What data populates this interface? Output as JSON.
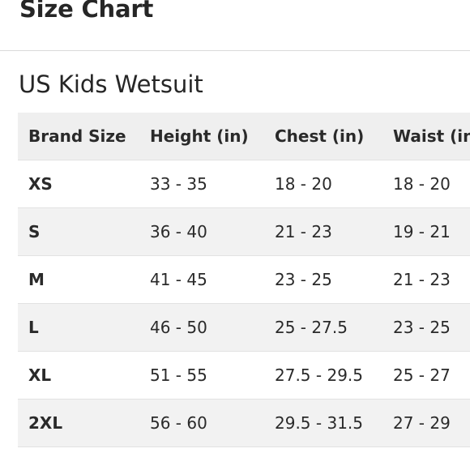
{
  "modal": {
    "title": "Size Chart"
  },
  "section": {
    "title": "US Kids Wetsuit"
  },
  "table": {
    "headers": [
      "Brand Size",
      "Height (in)",
      "Chest (in)",
      "Waist (in)"
    ],
    "rows": [
      [
        "XS",
        "33 - 35",
        "18 - 20",
        "18 - 20"
      ],
      [
        "S",
        "36 - 40",
        "21 - 23",
        "19 - 21"
      ],
      [
        "M",
        "41 - 45",
        "23 - 25",
        "21 - 23"
      ],
      [
        "L",
        "46 - 50",
        "25 - 27.5",
        "23 - 25"
      ],
      [
        "XL",
        "51 - 55",
        "27.5 - 29.5",
        "25 - 27"
      ],
      [
        "2XL",
        "56 - 60",
        "29.5 - 31.5",
        "27 - 29"
      ]
    ]
  },
  "colors": {
    "header_bg": "#efefef",
    "stripe_bg": "#f2f2f2",
    "text": "#262626",
    "divider": "#d9d9d9"
  }
}
